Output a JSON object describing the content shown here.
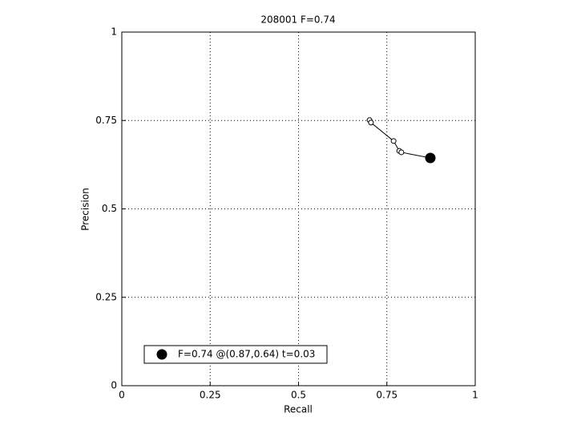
{
  "chart_data": {
    "type": "line",
    "title": "208001 F=0.74",
    "x_label": "Recall",
    "y_label": "Precision",
    "series": [
      {
        "x": [
          0.701,
          0.705,
          0.769,
          0.785,
          0.791,
          0.873
        ],
        "values": [
          0.751,
          0.744,
          0.692,
          0.664,
          0.66,
          0.644
        ],
        "color": "#000000",
        "marker": "open"
      },
      {
        "name": "F=0.74 @(0.87,0.64) t=0.03",
        "x": [
          0.873
        ],
        "values": [
          0.644
        ],
        "color": "#000000",
        "marker": "filled"
      }
    ],
    "xlim": [
      0,
      1
    ],
    "ylim": [
      0,
      1
    ],
    "xticks": [
      0,
      0.25,
      0.5,
      0.75,
      1
    ],
    "yticks": [
      0,
      0.25,
      0.5,
      0.75,
      1
    ],
    "grid": true,
    "legend_position": "lower left"
  }
}
